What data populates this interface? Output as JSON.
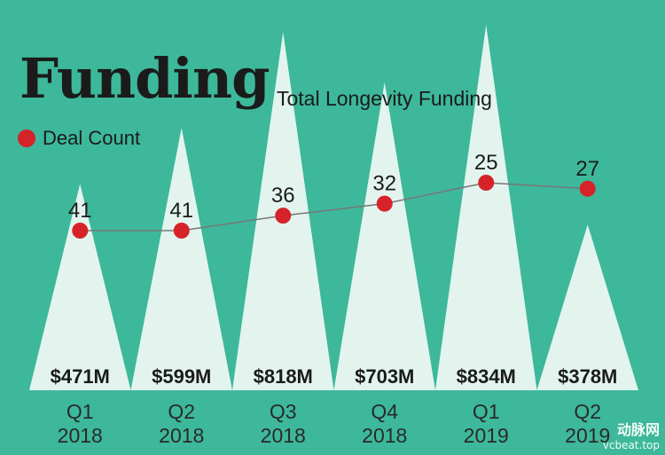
{
  "title": "Funding",
  "subtitle": "Total Longevity Funding",
  "legend": {
    "deal_count_label": "Deal Count"
  },
  "colors": {
    "background": "#3db89a",
    "spike": "#e3f4ee",
    "dot": "#d6232a",
    "line": "#777777",
    "text": "#1b1b1b"
  },
  "watermark": {
    "brand": "动脉网",
    "url": "vcbeat.top"
  },
  "chart_data": {
    "type": "area",
    "categories": [
      [
        "Q1",
        "2018"
      ],
      [
        "Q2",
        "2018"
      ],
      [
        "Q3",
        "2018"
      ],
      [
        "Q4",
        "2018"
      ],
      [
        "Q1",
        "2019"
      ],
      [
        "Q2",
        "2019"
      ]
    ],
    "series": [
      {
        "name": "Total Longevity Funding",
        "style": "spike",
        "values": [
          471,
          599,
          818,
          703,
          834,
          378
        ],
        "labels": [
          "$471M",
          "$599M",
          "$818M",
          "$703M",
          "$834M",
          "$378M"
        ]
      },
      {
        "name": "Deal Count",
        "style": "line-with-dots",
        "values": [
          41,
          41,
          36,
          32,
          25,
          27
        ]
      }
    ],
    "grid": false,
    "legend_position": "top-left"
  }
}
